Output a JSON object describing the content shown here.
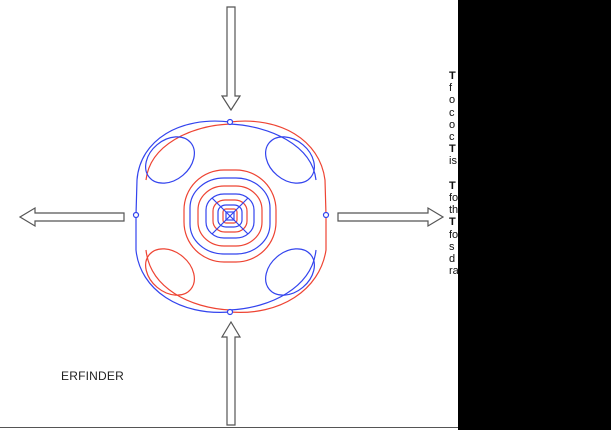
{
  "label": "ERFINDER",
  "colors": {
    "blue": "#3344ee",
    "red": "#ee4433",
    "arrow": "#555555",
    "panel": "#000000"
  },
  "side_text": {
    "lines": [
      {
        "text": "T",
        "bold": true
      },
      {
        "text": "f",
        "bold": false
      },
      {
        "text": "o",
        "bold": false
      },
      {
        "text": "c",
        "bold": false
      },
      {
        "text": "o",
        "bold": false
      },
      {
        "text": "c",
        "bold": false
      },
      {
        "text": "T",
        "bold": true
      },
      {
        "text": "is",
        "bold": false
      },
      {
        "text": "",
        "bold": false
      },
      {
        "text": "T",
        "bold": true
      },
      {
        "text": "fo",
        "bold": false
      },
      {
        "text": "th",
        "bold": false
      },
      {
        "text": "T",
        "bold": true
      },
      {
        "text": "fo",
        "bold": false
      },
      {
        "text": "s",
        "bold": false
      },
      {
        "text": "d",
        "bold": false
      },
      {
        "text": "ra",
        "bold": false
      }
    ]
  }
}
